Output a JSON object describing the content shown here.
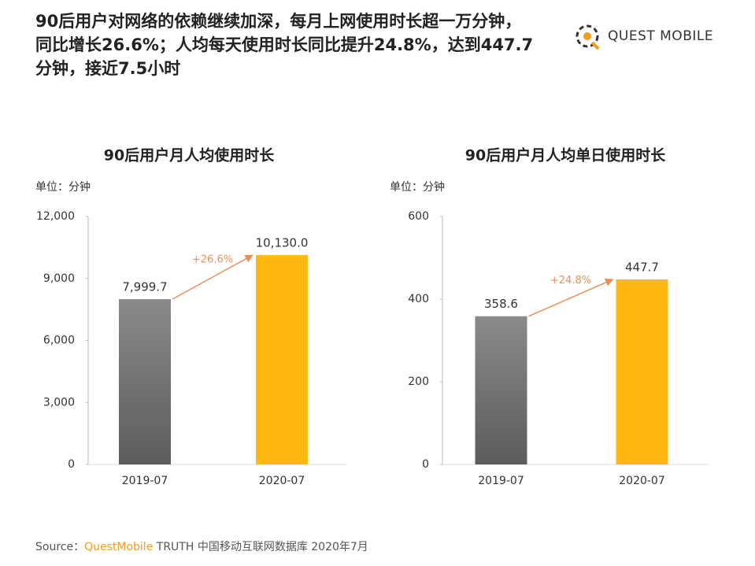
{
  "title": [
    "90后用户对网络的依赖继续加深，每月上网使用时长超一万分钟，",
    "同比增长26.6%；人均每天使用时长同比提升24.8%，达到447.7",
    "分钟，接近7.5小时"
  ],
  "logo": "QUEST MOBILE",
  "source": {
    "prefix": "Source：",
    "brand": "QuestMobile",
    "rest": " TRUTH 中国移动互联网数据库 2020年7月"
  },
  "chart_data": [
    {
      "type": "bar",
      "title": "90后用户月人均使用时长",
      "unit": "单位：分钟",
      "categories": [
        "2019-07",
        "2020-07"
      ],
      "values": [
        7999.7,
        10130.0
      ],
      "value_labels": [
        "7,999.7",
        "10,130.0"
      ],
      "colors": [
        "#7a7a7a",
        "#ffb912"
      ],
      "annotation": "+26.6%",
      "annotation_color": "#e8915a",
      "ylim": [
        0,
        12000
      ],
      "yticks": [
        0,
        {
          "value": 3000,
          "label": "3,000"
        },
        {
          "value": 6000,
          "label": "6,000"
        },
        {
          "value": 9000,
          "label": "9,000"
        },
        {
          "value": 12000,
          "label": "12,000"
        }
      ],
      "grid": false
    },
    {
      "type": "bar",
      "title": "90后用户月人均单日使用时长",
      "unit": "单位：分钟",
      "categories": [
        "2019-07",
        "2020-07"
      ],
      "values": [
        358.6,
        447.7
      ],
      "colors": [
        "#7a7a7a",
        "#ffb912"
      ],
      "annotation": "+24.8%",
      "annotation_color": "#e8915a",
      "ylim": [
        0,
        600
      ],
      "yticks": [
        0,
        200,
        400,
        600
      ],
      "grid": false
    }
  ]
}
